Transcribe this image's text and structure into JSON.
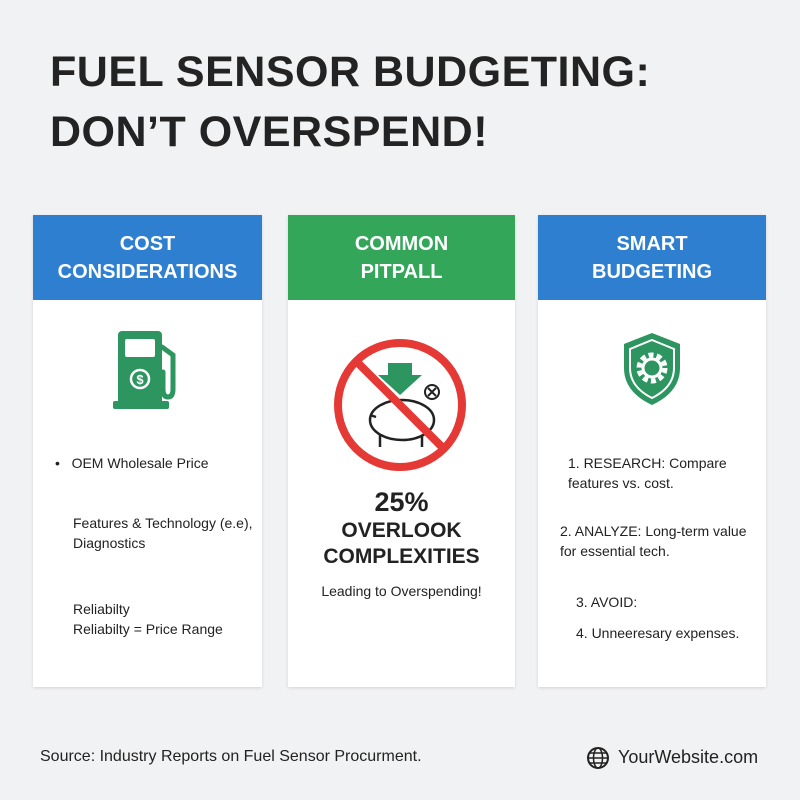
{
  "header": {
    "title_lines": [
      "FUEL SENSOR BUDGETING:",
      "DON’T OVERSPEND!"
    ]
  },
  "cards": [
    {
      "title_lines": [
        "COST",
        "CONSIDERATIONS"
      ],
      "items": [
        "OEM Wholesale Price",
        "Features & Technology (e.e), Diagnostics",
        "Reliabilty",
        "Reliabilty = Price Range"
      ]
    },
    {
      "title_lines": [
        "COMMON",
        "PITPALL"
      ],
      "stat": "25%",
      "stat_label": "OVERLOOK COMPLEXITIES",
      "note": "Leading to Overspending!"
    },
    {
      "title_lines": [
        "SMART",
        "BUDGETING"
      ],
      "items": [
        "1. RESEARCH: Compare features vs. cost.",
        "2. ANALYZE: Long-term value for essential tech.",
        "3. AVOID:",
        "4. Unneeresary expenses."
      ]
    }
  ],
  "footer": {
    "source": "Source: Industry Reports on Fuel Sensor Procurment.",
    "website": "YourWebsite.com"
  }
}
